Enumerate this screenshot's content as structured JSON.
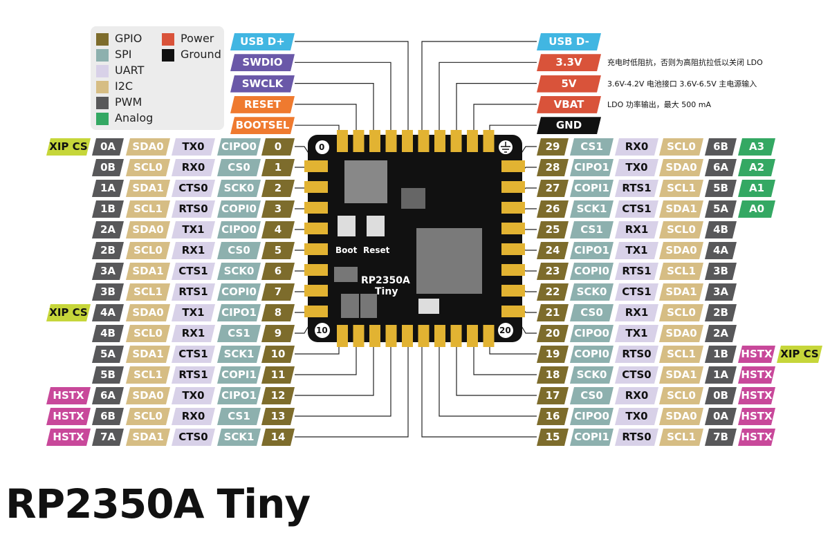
{
  "colors": {
    "GPIO": "#7d6c2c",
    "SPI": "#8db0ae",
    "UART": "#d8d1e8",
    "I2C": "#d6bd84",
    "PWM": "#58585a",
    "Analog": "#34a863",
    "Power": "#d9533a",
    "Ground": "#111111",
    "USB": "#41b6e2",
    "SWD": "#6a58a8",
    "Ctrl": "#ef7a2f",
    "XIP": "#c6d63a",
    "HSTX": "#c8489a"
  },
  "legend": [
    {
      "label": "GPIO",
      "color": "#7d6c2c"
    },
    {
      "label": "SPI",
      "color": "#8db0ae"
    },
    {
      "label": "UART",
      "color": "#d8d1e8"
    },
    {
      "label": "I2C",
      "color": "#d6bd84"
    },
    {
      "label": "PWM",
      "color": "#58585a"
    },
    {
      "label": "Analog",
      "color": "#34a863"
    },
    {
      "label": "Power",
      "color": "#d9533a"
    },
    {
      "label": "Ground",
      "color": "#111111"
    }
  ],
  "top_left": [
    {
      "label": "USB D+",
      "type": "USB"
    },
    {
      "label": "SWDIO",
      "type": "SWD"
    },
    {
      "label": "SWCLK",
      "type": "SWD"
    },
    {
      "label": "RESET",
      "type": "Ctrl"
    },
    {
      "label": "BOOTSEL",
      "type": "Ctrl"
    }
  ],
  "top_right": [
    {
      "label": "USB D-",
      "type": "USB",
      "note": ""
    },
    {
      "label": "3.3V",
      "type": "Power",
      "note": "充电时低阻抗，否则为高阻抗拉低以关闭 LDO"
    },
    {
      "label": "5V",
      "type": "Power",
      "note": "3.6V-4.2V 电池接口 3.6V-6.5V 主电源输入"
    },
    {
      "label": "VBAT",
      "type": "Power",
      "note": "LDO 功率输出，最大 500 mA"
    },
    {
      "label": "GND",
      "type": "Ground",
      "note": ""
    }
  ],
  "left_pins": [
    {
      "gpio": "0",
      "spi": "CIPO0",
      "uart": "TX0",
      "i2c": "SDA0",
      "pwm": "0A",
      "extra": "XIP CS"
    },
    {
      "gpio": "1",
      "spi": "CS0",
      "uart": "RX0",
      "i2c": "SCL0",
      "pwm": "0B",
      "extra": ""
    },
    {
      "gpio": "2",
      "spi": "SCK0",
      "uart": "CTS0",
      "i2c": "SDA1",
      "pwm": "1A",
      "extra": ""
    },
    {
      "gpio": "3",
      "spi": "COPI0",
      "uart": "RTS0",
      "i2c": "SCL1",
      "pwm": "1B",
      "extra": ""
    },
    {
      "gpio": "4",
      "spi": "CIPO0",
      "uart": "TX1",
      "i2c": "SDA0",
      "pwm": "2A",
      "extra": ""
    },
    {
      "gpio": "5",
      "spi": "CS0",
      "uart": "RX1",
      "i2c": "SCL0",
      "pwm": "2B",
      "extra": ""
    },
    {
      "gpio": "6",
      "spi": "SCK0",
      "uart": "CTS1",
      "i2c": "SDA1",
      "pwm": "3A",
      "extra": ""
    },
    {
      "gpio": "7",
      "spi": "COPI0",
      "uart": "RTS1",
      "i2c": "SCL1",
      "pwm": "3B",
      "extra": ""
    },
    {
      "gpio": "8",
      "spi": "CIPO1",
      "uart": "TX1",
      "i2c": "SDA0",
      "pwm": "4A",
      "extra": "XIP CS"
    },
    {
      "gpio": "9",
      "spi": "CS1",
      "uart": "RX1",
      "i2c": "SCL0",
      "pwm": "4B",
      "extra": ""
    },
    {
      "gpio": "10",
      "spi": "SCK1",
      "uart": "CTS1",
      "i2c": "SDA1",
      "pwm": "5A",
      "extra": ""
    },
    {
      "gpio": "11",
      "spi": "COPI1",
      "uart": "RTS1",
      "i2c": "SCL1",
      "pwm": "5B",
      "extra": ""
    },
    {
      "gpio": "12",
      "spi": "CIPO1",
      "uart": "TX0",
      "i2c": "SDA0",
      "pwm": "6A",
      "extra": "HSTX"
    },
    {
      "gpio": "13",
      "spi": "CS1",
      "uart": "RX0",
      "i2c": "SCL0",
      "pwm": "6B",
      "extra": "HSTX"
    },
    {
      "gpio": "14",
      "spi": "SCK1",
      "uart": "CTS0",
      "i2c": "SDA1",
      "pwm": "7A",
      "extra": "HSTX"
    }
  ],
  "right_pins": [
    {
      "gpio": "29",
      "spi": "CS1",
      "uart": "RX0",
      "i2c": "SCL0",
      "pwm": "6B",
      "extra": "A3",
      "extra2": ""
    },
    {
      "gpio": "28",
      "spi": "CIPO1",
      "uart": "TX0",
      "i2c": "SDA0",
      "pwm": "6A",
      "extra": "A2",
      "extra2": ""
    },
    {
      "gpio": "27",
      "spi": "COPI1",
      "uart": "RTS1",
      "i2c": "SCL1",
      "pwm": "5B",
      "extra": "A1",
      "extra2": ""
    },
    {
      "gpio": "26",
      "spi": "SCK1",
      "uart": "CTS1",
      "i2c": "SDA1",
      "pwm": "5A",
      "extra": "A0",
      "extra2": ""
    },
    {
      "gpio": "25",
      "spi": "CS1",
      "uart": "RX1",
      "i2c": "SCL0",
      "pwm": "4B",
      "extra": "",
      "extra2": ""
    },
    {
      "gpio": "24",
      "spi": "CIPO1",
      "uart": "TX1",
      "i2c": "SDA0",
      "pwm": "4A",
      "extra": "",
      "extra2": ""
    },
    {
      "gpio": "23",
      "spi": "COPI0",
      "uart": "RTS1",
      "i2c": "SCL1",
      "pwm": "3B",
      "extra": "",
      "extra2": ""
    },
    {
      "gpio": "22",
      "spi": "SCK0",
      "uart": "CTS1",
      "i2c": "SDA1",
      "pwm": "3A",
      "extra": "",
      "extra2": ""
    },
    {
      "gpio": "21",
      "spi": "CS0",
      "uart": "RX1",
      "i2c": "SCL0",
      "pwm": "2B",
      "extra": "",
      "extra2": ""
    },
    {
      "gpio": "20",
      "spi": "CIPO0",
      "uart": "TX1",
      "i2c": "SDA0",
      "pwm": "2A",
      "extra": "",
      "extra2": ""
    },
    {
      "gpio": "19",
      "spi": "COPI0",
      "uart": "RTS0",
      "i2c": "SCL1",
      "pwm": "1B",
      "extra": "HSTX",
      "extra2": "XIP CS"
    },
    {
      "gpio": "18",
      "spi": "SCK0",
      "uart": "CTS0",
      "i2c": "SDA1",
      "pwm": "1A",
      "extra": "HSTX",
      "extra2": ""
    },
    {
      "gpio": "17",
      "spi": "CS0",
      "uart": "RX0",
      "i2c": "SCL0",
      "pwm": "0B",
      "extra": "HSTX",
      "extra2": ""
    },
    {
      "gpio": "16",
      "spi": "CIPO0",
      "uart": "TX0",
      "i2c": "SDA0",
      "pwm": "0A",
      "extra": "HSTX",
      "extra2": ""
    },
    {
      "gpio": "15",
      "spi": "COPI1",
      "uart": "RTS0",
      "i2c": "SCL1",
      "pwm": "7B",
      "extra": "HSTX",
      "extra2": ""
    }
  ],
  "board": {
    "name": "RP2350A",
    "sub": "Tiny",
    "boot": "Boot",
    "reset": "Reset",
    "mark0": "0",
    "mark10": "10",
    "mark20": "20"
  },
  "title": "RP2350A Tiny"
}
